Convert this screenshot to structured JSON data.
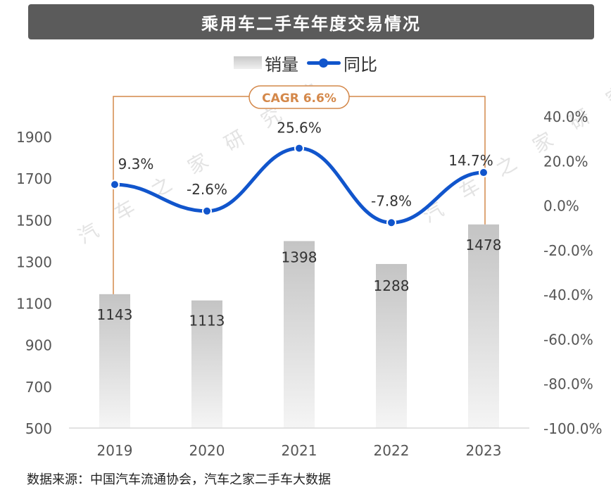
{
  "title": "乘用车二手车年度交易情况",
  "legend": {
    "bar_label": "销量",
    "line_label": "同比"
  },
  "cagr_label": "CAGR 6.6%",
  "source": "数据来源：中国汽车流通协会，汽车之家二手车大数据",
  "watermark": "汽车之家研究院",
  "colors": {
    "line": "#1155cc",
    "cagr": "#d4884a",
    "title_bg": "#5b5b5b"
  },
  "chart_data": {
    "type": "bar",
    "categories": [
      "2019",
      "2020",
      "2021",
      "2022",
      "2023"
    ],
    "series": [
      {
        "name": "销量",
        "type": "bar",
        "axis": "left",
        "values": [
          1143,
          1113,
          1398,
          1288,
          1478
        ],
        "labels": [
          "1143",
          "1113",
          "1398",
          "1288",
          "1478"
        ]
      },
      {
        "name": "同比",
        "type": "line",
        "axis": "right",
        "values": [
          9.3,
          -2.6,
          25.6,
          -7.8,
          14.7
        ],
        "labels": [
          "9.3%",
          "-2.6%",
          "25.6%",
          "-7.8%",
          "14.7%"
        ]
      }
    ],
    "left_axis": {
      "ylim": [
        500,
        1900
      ],
      "ticks": [
        500,
        700,
        900,
        1100,
        1300,
        1500,
        1700,
        1900
      ]
    },
    "right_axis": {
      "ylim": [
        -100,
        40
      ],
      "ticks": [
        -100,
        -80,
        -60,
        -40,
        -20,
        0,
        20,
        40
      ],
      "tick_labels": [
        "-100.0%",
        "-80.0%",
        "-60.0%",
        "-40.0%",
        "-20.0%",
        "0.0%",
        "20.0%",
        "40.0%"
      ]
    },
    "legend_position": "top",
    "grid": false
  }
}
